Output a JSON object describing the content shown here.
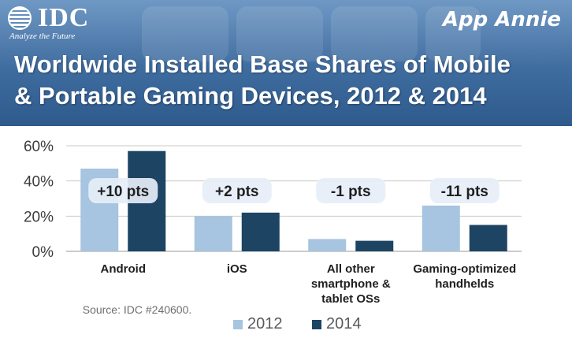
{
  "branding": {
    "idc_logo_text": "IDC",
    "idc_tagline": "Analyze the Future",
    "app_annie_text": "App Annie"
  },
  "title_lines": [
    "Worldwide Installed Base Shares of Mobile",
    "& Portable Gaming Devices, 2012 & 2014"
  ],
  "source_text": "Source: IDC #240600.",
  "colors": {
    "header": "#3f6c9f",
    "series_2012": "#a7c4e0",
    "series_2014": "#1d4463",
    "callout_bg": "#e6eef7",
    "axis_text": "#3c3c3c"
  },
  "chart_data": {
    "type": "bar",
    "categories": [
      "Android",
      "iOS",
      "All other smartphone & tablet OSs",
      "Gaming-optimized handhelds"
    ],
    "category_label_lines": [
      [
        "Android"
      ],
      [
        "iOS"
      ],
      [
        "All other",
        "smartphone &",
        "tablet OSs"
      ],
      [
        "Gaming-optimized",
        "handhelds"
      ]
    ],
    "series": [
      {
        "name": "2012",
        "values": [
          47,
          20,
          7,
          26
        ]
      },
      {
        "name": "2014",
        "values": [
          57,
          22,
          6,
          15
        ]
      }
    ],
    "annotations": [
      "+10 pts",
      "+2 pts",
      "-1 pts",
      "-11 pts"
    ],
    "y_ticks": [
      "0%",
      "20%",
      "40%",
      "60%"
    ],
    "ylim": [
      0,
      60
    ],
    "grid": true,
    "legend_position": "bottom"
  }
}
